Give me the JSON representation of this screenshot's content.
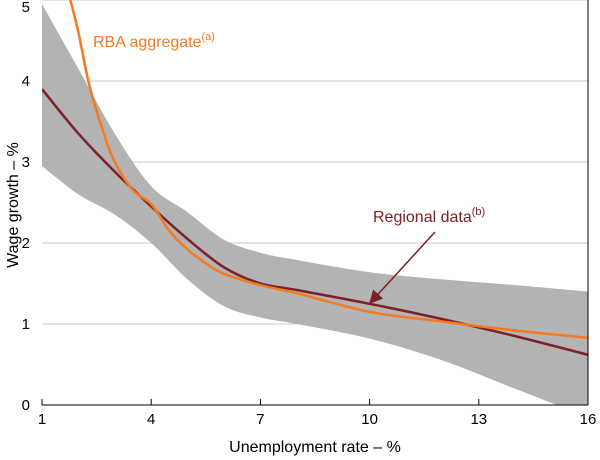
{
  "chart_data": {
    "type": "line",
    "xlabel": "Unemployment rate – %",
    "ylabel": "Wage growth – %",
    "xlim": [
      1,
      16
    ],
    "ylim": [
      0,
      5
    ],
    "x_ticks": [
      1,
      4,
      7,
      10,
      13,
      16
    ],
    "y_ticks": [
      0,
      1,
      2,
      3,
      4,
      5
    ],
    "grid": "horizontal",
    "colors": {
      "rba": "#f47a20",
      "regional": "#7b2128",
      "band": "#b3b3b3"
    },
    "annotations": {
      "rba_label": "RBA aggregate",
      "rba_sup": "(a)",
      "regional_label": "Regional data",
      "regional_sup": "(b)"
    },
    "series": [
      {
        "name": "RBA aggregate",
        "x": [
          1.75,
          2,
          2.3,
          2.7,
          3,
          3.5,
          4,
          4.5,
          5,
          5.5,
          6,
          7,
          8,
          10,
          12,
          14,
          16
        ],
        "y": [
          5.05,
          4.6,
          3.95,
          3.35,
          3.0,
          2.65,
          2.48,
          2.15,
          1.92,
          1.75,
          1.62,
          1.48,
          1.38,
          1.15,
          1.03,
          0.92,
          0.83
        ]
      },
      {
        "name": "Regional data",
        "x": [
          1,
          2,
          3,
          4,
          5,
          6,
          7,
          8,
          10,
          12,
          14,
          16
        ],
        "y": [
          3.9,
          3.35,
          2.88,
          2.45,
          2.05,
          1.7,
          1.5,
          1.42,
          1.25,
          1.06,
          0.85,
          0.62
        ]
      }
    ],
    "band": {
      "x": [
        1,
        2,
        3,
        4,
        5,
        6,
        7,
        8,
        10,
        12,
        14,
        16
      ],
      "upper": [
        4.95,
        4.15,
        3.35,
        2.7,
        2.38,
        2.04,
        1.88,
        1.79,
        1.64,
        1.55,
        1.48,
        1.4
      ],
      "lower": [
        2.95,
        2.6,
        2.35,
        2.0,
        1.55,
        1.22,
        1.08,
        1.0,
        0.82,
        0.55,
        0.2,
        -0.15
      ]
    }
  }
}
